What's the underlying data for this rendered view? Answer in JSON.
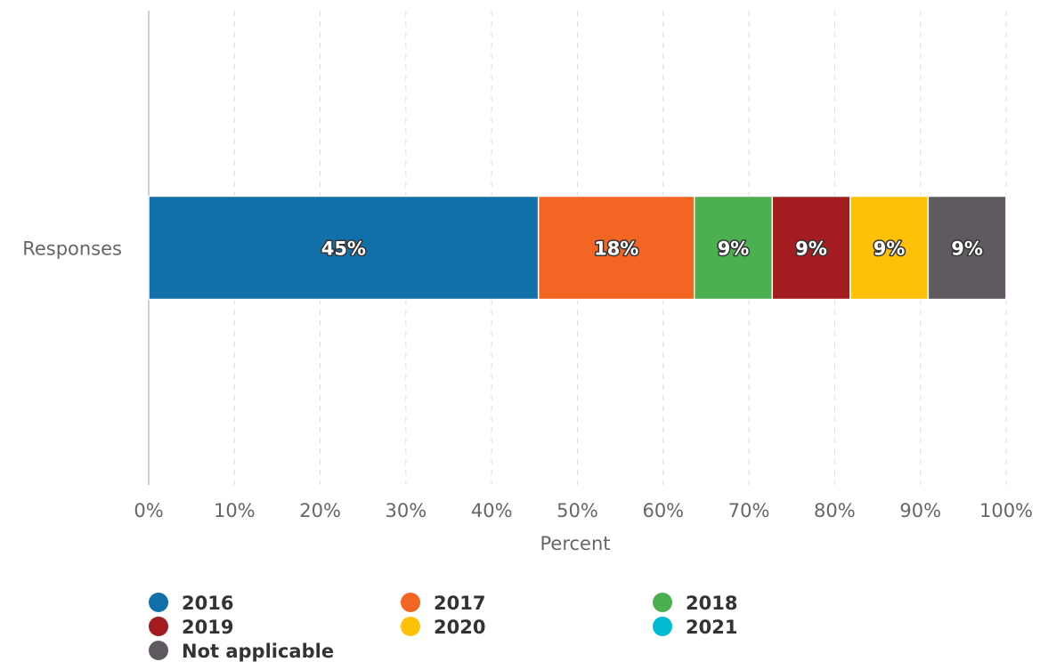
{
  "chart_data": {
    "type": "stacked-bar",
    "orientation": "horizontal",
    "categories": [
      "Responses"
    ],
    "x_label": "Percent",
    "xlim": [
      0,
      100
    ],
    "xticks": [
      {
        "value": 0,
        "label": "0%"
      },
      {
        "value": 10,
        "label": "10%"
      },
      {
        "value": 20,
        "label": "20%"
      },
      {
        "value": 30,
        "label": "30%"
      },
      {
        "value": 40,
        "label": "40%"
      },
      {
        "value": 50,
        "label": "50%"
      },
      {
        "value": 60,
        "label": "60%"
      },
      {
        "value": 70,
        "label": "70%"
      },
      {
        "value": 80,
        "label": "80%"
      },
      {
        "value": 90,
        "label": "90%"
      },
      {
        "value": 100,
        "label": "100%"
      }
    ],
    "grid": true,
    "legend": "bottom",
    "series": [
      {
        "name": "2016",
        "color": "#1170aa",
        "values": [
          45.45
        ],
        "value_labels": [
          "45%"
        ]
      },
      {
        "name": "2017",
        "color": "#f26522",
        "values": [
          18.18
        ],
        "value_labels": [
          "18%"
        ]
      },
      {
        "name": "2018",
        "color": "#4caf50",
        "values": [
          9.09
        ],
        "value_labels": [
          "9%"
        ]
      },
      {
        "name": "2019",
        "color": "#a31c1f",
        "values": [
          9.09
        ],
        "value_labels": [
          "9%"
        ]
      },
      {
        "name": "2020",
        "color": "#ffc107",
        "values": [
          9.09
        ],
        "value_labels": [
          "9%"
        ]
      },
      {
        "name": "2021",
        "color": "#00bcd4",
        "values": [
          0
        ],
        "value_labels": [
          null
        ]
      },
      {
        "name": "Not applicable",
        "color": "#5f5a60",
        "values": [
          9.09
        ],
        "value_labels": [
          "9%"
        ]
      }
    ]
  }
}
